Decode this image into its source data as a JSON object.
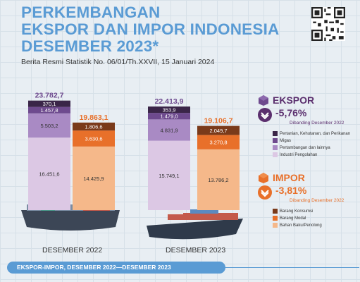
{
  "header": {
    "title_line1": "PERKEMBANGAN",
    "title_line2": "EKSPOR DAN IMPOR INDONESIA",
    "title_line3": "DESEMBER 2023*",
    "subtitle": "Berita Resmi Statistik No. 06/01/Th.XXVII, 15 Januari 2024"
  },
  "ekspor_panel": {
    "label": "EKSPOR",
    "change": "-5,76%",
    "compare": "Dibanding Desember 2022",
    "legend": [
      {
        "label": "Pertanian, Kehutanan, dan Perikanan",
        "color": "#3a2548"
      },
      {
        "label": "Migas",
        "color": "#6e4a8e"
      },
      {
        "label": "Pertambangan dan lainnya",
        "color": "#a98ac4"
      },
      {
        "label": "Industri Pengolahan",
        "color": "#dcc8e4"
      }
    ]
  },
  "impor_panel": {
    "label": "IMPOR",
    "change": "-3,81%",
    "compare": "Dibanding Desember 2022",
    "legend": [
      {
        "label": "Barang Konsumsi",
        "color": "#7a3a1a"
      },
      {
        "label": "Barang Modal",
        "color": "#e8702a"
      },
      {
        "label": "Bahan Baku/Penolong",
        "color": "#f5b88a"
      }
    ]
  },
  "footer": {
    "text": "EKSPOR-IMPOR, DESEMBER 2022—DESEMBER 2023"
  },
  "chart_data": {
    "type": "bar",
    "stacked": true,
    "categories": [
      "DESEMBER 2022",
      "DESEMBER 2023"
    ],
    "groups": [
      {
        "name": "Ekspor",
        "totals": [
          "23.782,7",
          "22.413,9"
        ],
        "total_values": [
          23782.7,
          22413.9
        ],
        "color": "#6e4a8e",
        "series": [
          {
            "name": "Industri Pengolahan",
            "values": [
              16451.6,
              15749.1
            ],
            "labels": [
              "16.451,6",
              "15.749,1"
            ],
            "color": "#dcc8e4"
          },
          {
            "name": "Pertambangan dan lainnya",
            "values": [
              5503.2,
              4831.9
            ],
            "labels": [
              "5.503,2",
              "4.831,9"
            ],
            "color": "#a98ac4"
          },
          {
            "name": "Migas",
            "values": [
              1457.8,
              1479.0
            ],
            "labels": [
              "1.457,8",
              "1.479,0"
            ],
            "color": "#6e4a8e"
          },
          {
            "name": "Pertanian, Kehutanan, dan Perikanan",
            "values": [
              370.1,
              353.9
            ],
            "labels": [
              "370,1",
              "353,9"
            ],
            "color": "#3a2548"
          }
        ]
      },
      {
        "name": "Impor",
        "totals": [
          "19.863,1",
          "19.106,7"
        ],
        "total_values": [
          19863.1,
          19106.7
        ],
        "color": "#e8702a",
        "series": [
          {
            "name": "Bahan Baku/Penolong",
            "values": [
              14425.9,
              13786.2
            ],
            "labels": [
              "14.425,9",
              "13.786,2"
            ],
            "color": "#f5b88a"
          },
          {
            "name": "Barang Modal",
            "values": [
              3630.6,
              3270.8
            ],
            "labels": [
              "3.630,6",
              "3.270,8"
            ],
            "color": "#e8702a"
          },
          {
            "name": "Barang Konsumsi",
            "values": [
              1806.6,
              2049.7
            ],
            "labels": [
              "1.806,6",
              "2.049,7"
            ],
            "color": "#7a3a1a"
          }
        ]
      }
    ]
  }
}
